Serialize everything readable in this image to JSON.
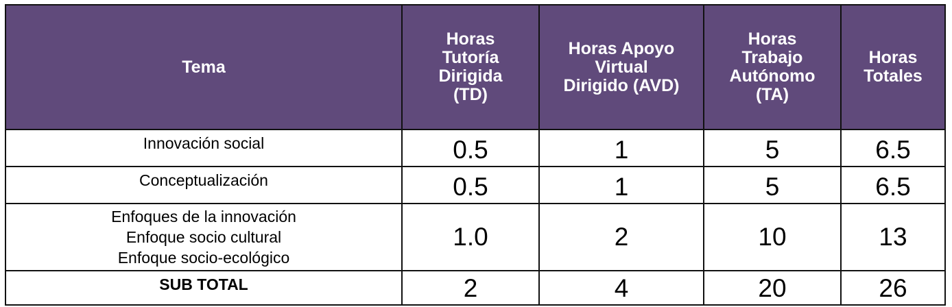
{
  "table": {
    "headers": {
      "tema": "Tema",
      "td": [
        "Horas",
        "Tutoría",
        "Dirigida",
        "(TD)"
      ],
      "avd": [
        "Horas Apoyo",
        "Virtual",
        "Dirigido (AVD)"
      ],
      "ta": [
        "Horas",
        "Trabajo",
        "Autónomo",
        "(TA)"
      ],
      "totales": [
        "Horas",
        "Totales"
      ]
    },
    "rows": [
      {
        "tema": [
          "Innovación social"
        ],
        "td": "0.5",
        "avd": "1",
        "ta": "5",
        "totales": "6.5"
      },
      {
        "tema": [
          "Conceptualización"
        ],
        "td": "0.5",
        "avd": "1",
        "ta": "5",
        "totales": "6.5"
      },
      {
        "tema": [
          "Enfoques de la innovación",
          "Enfoque socio cultural",
          "Enfoque socio-ecológico"
        ],
        "td": "1.0",
        "avd": "2",
        "ta": "10",
        "totales": "13"
      }
    ],
    "subtotal": {
      "label": "SUB TOTAL",
      "td": "2",
      "avd": "4",
      "ta": "20",
      "totales": "26"
    }
  },
  "colors": {
    "header_bg": "#604a7b",
    "header_text": "#ffffff",
    "border": "#111111"
  }
}
